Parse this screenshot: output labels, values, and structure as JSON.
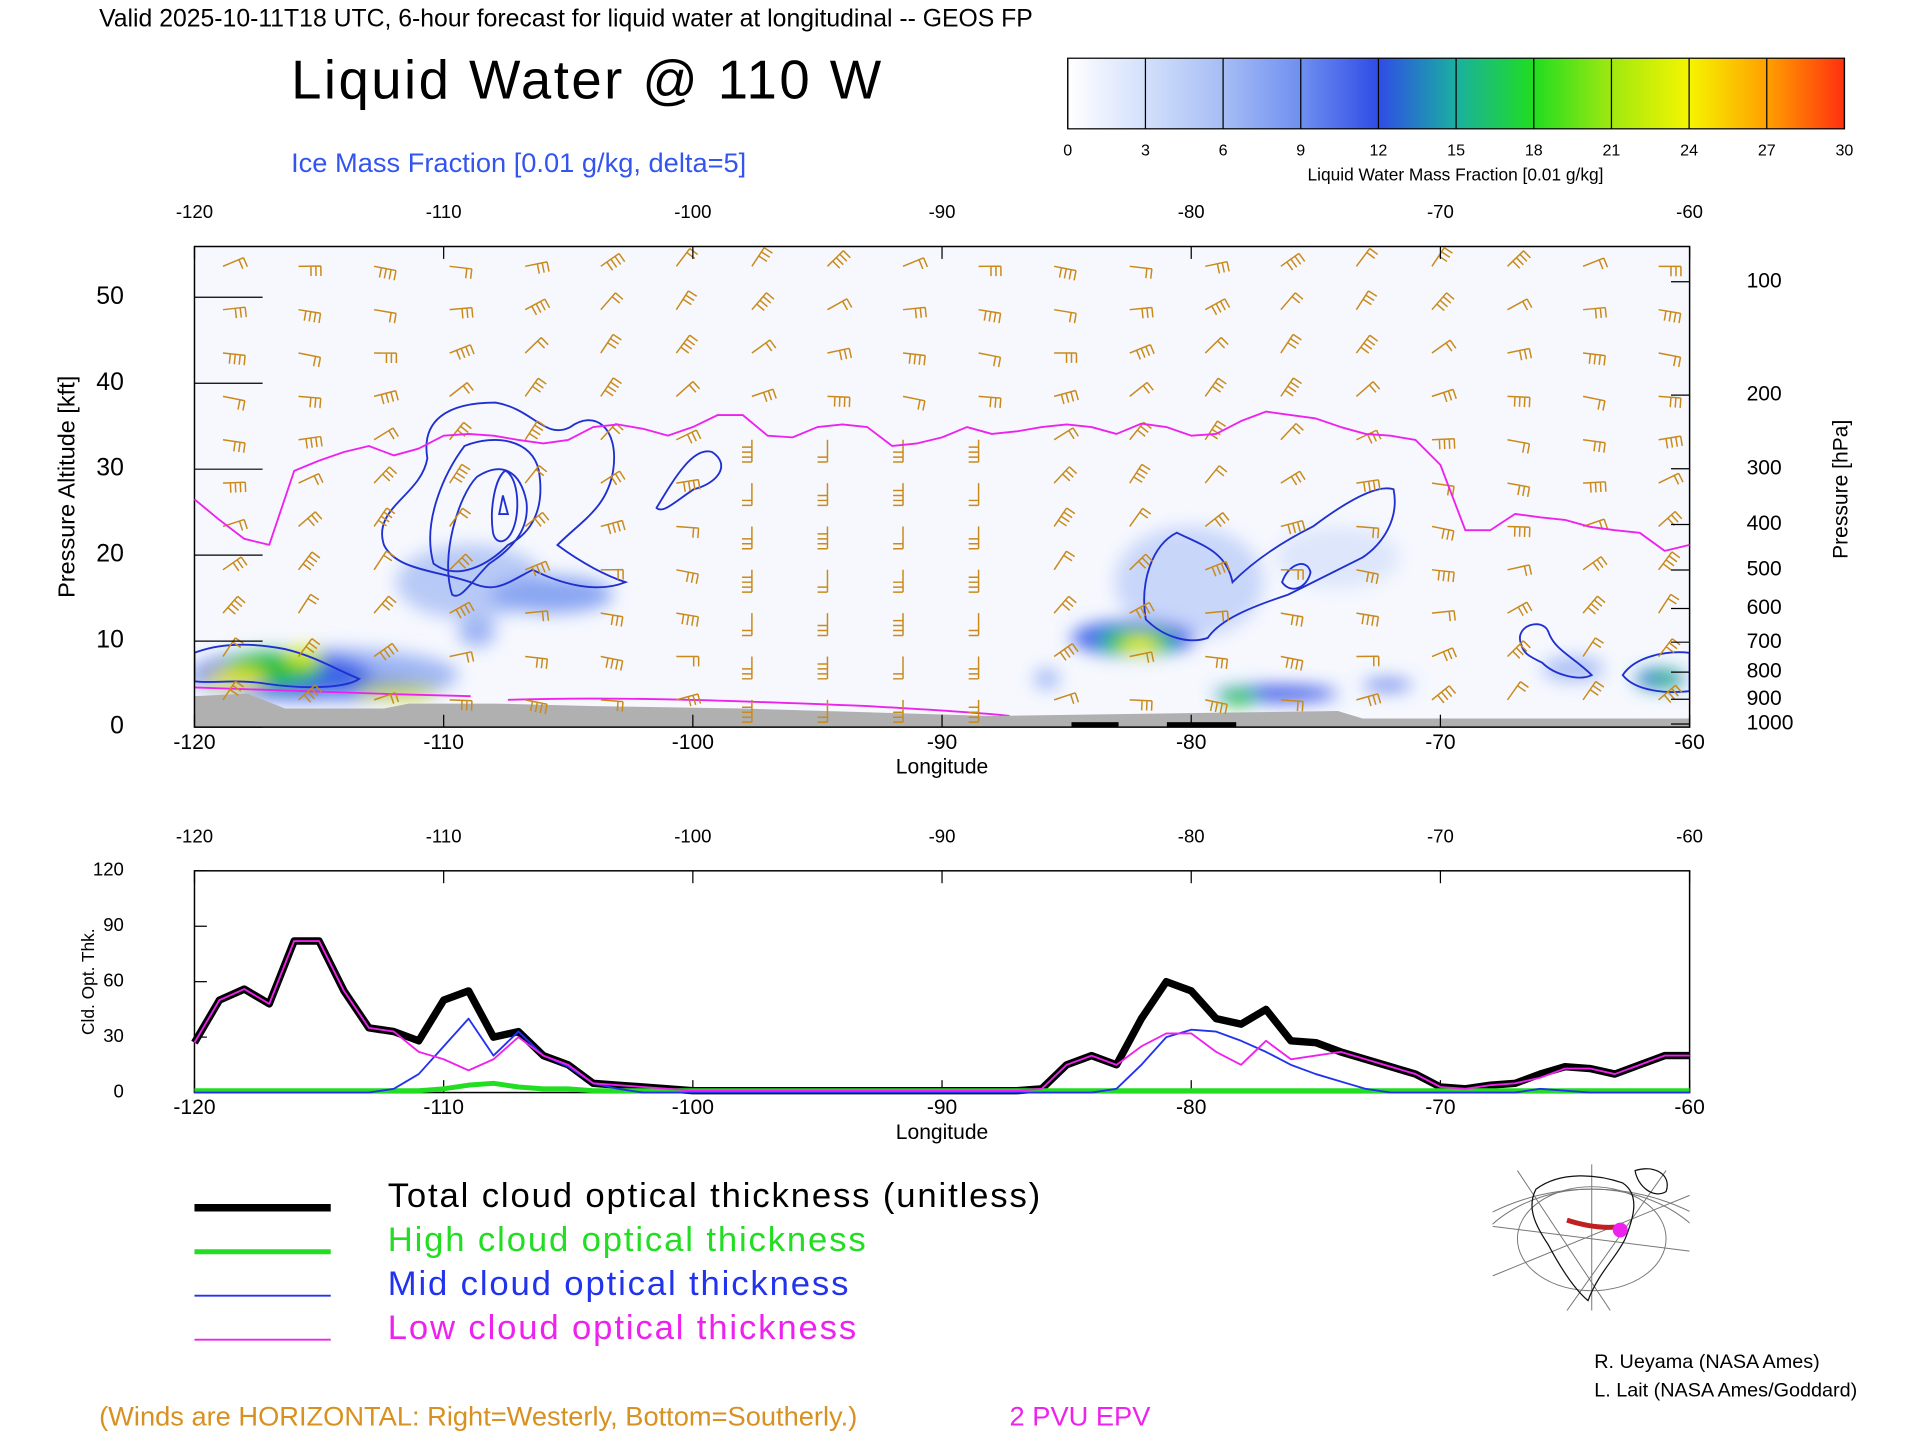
{
  "header": {
    "title_line": "Valid 2025-10-11T18 UTC, 6-hour forecast for liquid water at longitudinal -- GEOS FP",
    "main_title": "Liquid Water @ 110 W",
    "subtitle": "Ice Mass Fraction [0.01 g/kg, delta=5]"
  },
  "colorbar": {
    "label": "Liquid Water Mass Fraction [0.01 g/kg]",
    "ticks": [
      0,
      3,
      6,
      9,
      12,
      15,
      18,
      21,
      24,
      27,
      30
    ],
    "colors": [
      "#ffffff",
      "#d3e0fb",
      "#a6bdf5",
      "#6f8ff0",
      "#2f4ce6",
      "#1ab0a0",
      "#20dd20",
      "#a0e810",
      "#f5f500",
      "#ffa000",
      "#ff3010"
    ]
  },
  "chart_data": [
    {
      "type": "cross_section",
      "xlabel": "Longitude",
      "ylabel": "Pressure Altitude [kft]",
      "y2label": "Pressure [hPa]",
      "xlim": [
        -120,
        -60
      ],
      "xticks": [
        -120,
        -110,
        -100,
        -90,
        -80,
        -70,
        -60
      ],
      "ylim": [
        0,
        55.9
      ],
      "yticks": [
        0,
        10,
        20,
        30,
        40,
        50
      ],
      "y2scale": "pressure altitude",
      "y2ticks": [
        100,
        200,
        300,
        400,
        500,
        600,
        700,
        800,
        900,
        1000
      ],
      "series": [
        {
          "name": "2 PVU EPV",
          "color": "#ee22ee",
          "x": [
            -120,
            -119,
            -118,
            -117,
            -116,
            -115,
            -114,
            -113,
            -112,
            -111,
            -110,
            -109,
            -108,
            -107,
            -106,
            -105,
            -104,
            -103,
            -102,
            -101,
            -100,
            -99,
            -98,
            -97,
            -96,
            -95,
            -94,
            -93,
            -92,
            -91,
            -90,
            -89,
            -88,
            -87,
            -86,
            -85,
            -84,
            -83,
            -82,
            -81,
            -80,
            -79,
            -78,
            -77,
            -76,
            -75,
            -74,
            -73,
            -72,
            -71,
            -70,
            -69,
            -68,
            -67,
            -66,
            -65,
            -64,
            -63,
            -62,
            -61,
            -60
          ],
          "values": [
            26.5,
            24.1,
            21.9,
            21.2,
            29.8,
            31.0,
            32.0,
            32.7,
            31.6,
            32.4,
            33.9,
            34.1,
            33.9,
            33.4,
            33.0,
            33.4,
            34.9,
            35.2,
            34.7,
            33.9,
            34.9,
            36.3,
            36.3,
            33.9,
            33.7,
            34.9,
            35.2,
            34.9,
            32.7,
            33.0,
            33.7,
            34.9,
            34.1,
            34.4,
            34.9,
            35.2,
            34.9,
            34.1,
            35.3,
            34.9,
            33.9,
            34.1,
            35.6,
            36.7,
            36.3,
            35.9,
            34.9,
            34.1,
            33.9,
            33.4,
            30.5,
            22.9,
            22.9,
            24.8,
            24.4,
            24.1,
            23.3,
            22.9,
            22.6,
            20.5,
            21.2
          ]
        }
      ]
    },
    {
      "type": "line",
      "xlabel": "Longitude",
      "ylabel": "Cld. Opt. Thk.",
      "xlim": [
        -120,
        -60
      ],
      "xticks": [
        -120,
        -110,
        -100,
        -90,
        -80,
        -70,
        -60
      ],
      "ylim": [
        0,
        120
      ],
      "yticks": [
        0,
        30,
        60,
        90,
        120
      ],
      "x": [
        -120,
        -119,
        -118,
        -117,
        -116,
        -115,
        -114,
        -113,
        -112,
        -111,
        -110,
        -109,
        -108,
        -107,
        -106,
        -105,
        -104,
        -103,
        -102,
        -101,
        -100,
        -99,
        -98,
        -97,
        -96,
        -95,
        -94,
        -93,
        -92,
        -91,
        -90,
        -89,
        -88,
        -87,
        -86,
        -85,
        -84,
        -83,
        -82,
        -81,
        -80,
        -79,
        -78,
        -77,
        -76,
        -75,
        -74,
        -73,
        -72,
        -71,
        -70,
        -69,
        -68,
        -67,
        -66,
        -65,
        -64,
        -63,
        -62,
        -61,
        -60
      ],
      "series": [
        {
          "name": "Total cloud optical thickness (unitless)",
          "color": "#000000",
          "line_width": 6,
          "values": [
            27,
            50,
            56,
            48,
            82,
            82,
            55,
            35,
            33,
            28,
            50,
            55,
            30,
            33,
            20,
            15,
            5,
            4,
            3,
            2,
            1,
            1,
            1,
            1,
            1,
            1,
            1,
            1,
            1,
            1,
            1,
            1,
            1,
            1,
            2,
            15,
            20,
            15,
            40,
            60,
            55,
            40,
            37,
            45,
            28,
            27,
            22,
            18,
            14,
            10,
            3,
            2,
            4,
            5,
            10,
            14,
            13,
            10,
            15,
            20,
            20
          ]
        },
        {
          "name": "High cloud optical thickness",
          "color": "#22dd22",
          "line_width": 4,
          "values": [
            1,
            1,
            1,
            1,
            1,
            1,
            1,
            1,
            1,
            1,
            2,
            4,
            5,
            3,
            2,
            2,
            1,
            1,
            1,
            1,
            1,
            1,
            1,
            1,
            1,
            1,
            1,
            1,
            1,
            1,
            1,
            1,
            1,
            1,
            1,
            1,
            1,
            1,
            1,
            1,
            1,
            1,
            1,
            1,
            1,
            1,
            1,
            1,
            1,
            1,
            1,
            1,
            1,
            1,
            1,
            1,
            1,
            1,
            1,
            1,
            1
          ]
        },
        {
          "name": "Mid cloud optical thickness",
          "color": "#2233ee",
          "line_width": 1.5,
          "values": [
            0,
            0,
            0,
            0,
            0,
            0,
            0,
            0,
            2,
            10,
            25,
            40,
            20,
            33,
            20,
            14,
            5,
            2,
            0,
            0,
            0,
            0,
            0,
            0,
            0,
            0,
            0,
            0,
            0,
            0,
            0,
            0,
            0,
            0,
            0,
            0,
            0,
            2,
            15,
            30,
            34,
            33,
            28,
            22,
            15,
            10,
            6,
            2,
            0,
            0,
            0,
            0,
            0,
            0,
            2,
            1,
            0,
            0,
            0,
            0,
            0
          ]
        },
        {
          "name": "Low cloud optical thickness",
          "color": "#ee22ee",
          "line_width": 1.5,
          "values": [
            27,
            50,
            56,
            48,
            82,
            82,
            55,
            35,
            33,
            22,
            18,
            12,
            18,
            30,
            20,
            15,
            5,
            4,
            3,
            2,
            1,
            1,
            1,
            1,
            1,
            1,
            1,
            1,
            1,
            1,
            1,
            1,
            1,
            1,
            2,
            15,
            20,
            15,
            25,
            32,
            32,
            22,
            15,
            28,
            18,
            20,
            22,
            18,
            14,
            10,
            3,
            2,
            4,
            5,
            8,
            13,
            13,
            10,
            15,
            20,
            20
          ]
        }
      ]
    }
  ],
  "footer": {
    "winds_note": "(Winds are HORIZONTAL: Right=Westerly, Bottom=Southerly.)",
    "credit_1": "R. Ueyama (NASA Ames)",
    "credit_2": "L. Lait (NASA Ames/Goddard)"
  }
}
